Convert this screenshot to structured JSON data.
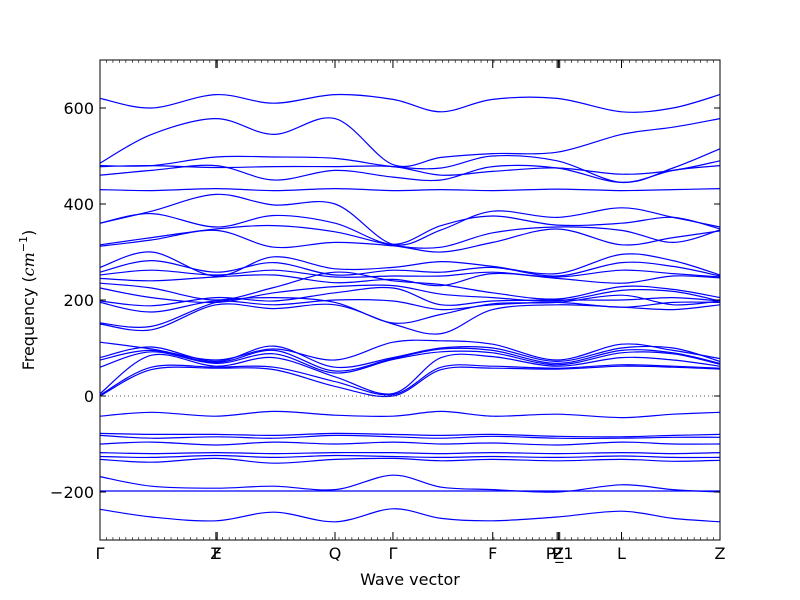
{
  "chart_data": {
    "type": "line",
    "title": "",
    "xlabel": "Wave vector",
    "ylabel": "Frequency ($cm^{-1}$)",
    "ylabel_parts": {
      "main": "Frequency (",
      "math": "cm",
      "sup": "−1",
      "close": ")"
    },
    "ylim": [
      -300,
      700
    ],
    "xlim": [
      0,
      9.63
    ],
    "grid": false,
    "yticks": [
      {
        "value": -200,
        "label": "−200"
      },
      {
        "value": 0,
        "label": "0"
      },
      {
        "value": 200,
        "label": "200"
      },
      {
        "value": 400,
        "label": "400"
      },
      {
        "value": 600,
        "label": "600"
      }
    ],
    "xticks": [
      {
        "value": 0,
        "label": "Γ"
      },
      {
        "value": 1.8,
        "label": "Z"
      },
      {
        "value": 1.82,
        "label": "F"
      },
      {
        "value": 3.65,
        "label": "Q"
      },
      {
        "value": 4.55,
        "label": "Γ"
      },
      {
        "value": 6.1,
        "label": "F"
      },
      {
        "value": 7.1,
        "label": "P"
      },
      {
        "value": 7.12,
        "label": "Z"
      },
      {
        "value": 7.14,
        "label": "P_1"
      },
      {
        "value": 8.1,
        "label": "L"
      },
      {
        "value": 9.63,
        "label": "Z"
      }
    ],
    "zero_line": true,
    "series_color": "#0000ff",
    "x": [
      0,
      0.8,
      1.8,
      2.7,
      3.65,
      4.55,
      5.3,
      6.1,
      7.1,
      8.1,
      8.9,
      9.63
    ],
    "series": [
      {
        "values": [
          620,
          600,
          628,
          610,
          628,
          618,
          592,
          618,
          620,
          592,
          600,
          628
        ]
      },
      {
        "values": [
          485,
          545,
          578,
          545,
          578,
          482,
          497,
          505,
          508,
          545,
          560,
          578
        ]
      },
      {
        "values": [
          480,
          480,
          498,
          498,
          495,
          478,
          475,
          500,
          490,
          445,
          475,
          515
        ]
      },
      {
        "values": [
          478,
          480,
          476,
          478,
          478,
          478,
          460,
          468,
          475,
          462,
          470,
          490
        ]
      },
      {
        "values": [
          460,
          470,
          480,
          450,
          470,
          456,
          450,
          478,
          475,
          445,
          470,
          480
        ]
      },
      {
        "values": [
          430,
          428,
          432,
          428,
          432,
          428,
          430,
          428,
          431,
          428,
          430,
          432
        ]
      },
      {
        "values": [
          360,
          385,
          420,
          398,
          400,
          316,
          346,
          385,
          372,
          392,
          372,
          352
        ]
      },
      {
        "values": [
          360,
          380,
          352,
          376,
          360,
          316,
          355,
          375,
          356,
          360,
          372,
          348
        ]
      },
      {
        "values": [
          315,
          330,
          348,
          355,
          342,
          314,
          310,
          340,
          352,
          345,
          320,
          346
        ]
      },
      {
        "values": [
          312,
          325,
          345,
          310,
          320,
          313,
          300,
          320,
          348,
          315,
          330,
          344
        ]
      },
      {
        "values": [
          268,
          300,
          250,
          290,
          265,
          268,
          280,
          270,
          255,
          295,
          282,
          252
        ]
      },
      {
        "values": [
          258,
          282,
          258,
          278,
          252,
          262,
          258,
          268,
          250,
          278,
          270,
          250
        ]
      },
      {
        "values": [
          252,
          262,
          252,
          262,
          248,
          250,
          250,
          258,
          248,
          262,
          255,
          248
        ]
      },
      {
        "values": [
          245,
          240,
          248,
          252,
          236,
          243,
          230,
          255,
          245,
          235,
          250,
          246
        ]
      },
      {
        "values": [
          235,
          225,
          200,
          226,
          258,
          240,
          232,
          215,
          202,
          228,
          222,
          205
        ]
      },
      {
        "values": [
          225,
          205,
          195,
          215,
          228,
          230,
          212,
          205,
          198,
          220,
          218,
          198
        ]
      },
      {
        "values": [
          198,
          188,
          205,
          198,
          215,
          225,
          190,
          198,
          200,
          200,
          205,
          198
        ]
      },
      {
        "values": [
          195,
          175,
          198,
          190,
          200,
          198,
          180,
          190,
          195,
          185,
          195,
          195
        ]
      },
      {
        "values": [
          152,
          145,
          195,
          205,
          195,
          152,
          170,
          192,
          195,
          210,
          190,
          198
        ]
      },
      {
        "values": [
          150,
          138,
          190,
          182,
          190,
          150,
          130,
          180,
          190,
          185,
          180,
          190
        ]
      },
      {
        "values": [
          112,
          98,
          75,
          98,
          75,
          112,
          115,
          108,
          75,
          108,
          95,
          78
        ]
      },
      {
        "values": [
          80,
          102,
          72,
          104,
          60,
          80,
          100,
          100,
          72,
          100,
          100,
          72
        ]
      },
      {
        "values": [
          75,
          95,
          70,
          95,
          52,
          78,
          98,
          95,
          68,
          95,
          90,
          68
        ]
      },
      {
        "values": [
          60,
          92,
          68,
          88,
          48,
          76,
          92,
          90,
          65,
          90,
          88,
          66
        ]
      },
      {
        "values": [
          5,
          85,
          62,
          80,
          40,
          5,
          80,
          82,
          62,
          80,
          75,
          62
        ]
      },
      {
        "values": [
          2,
          60,
          60,
          60,
          30,
          3,
          60,
          62,
          58,
          65,
          62,
          58
        ]
      },
      {
        "values": [
          0,
          55,
          58,
          55,
          20,
          0,
          55,
          58,
          56,
          62,
          60,
          56
        ]
      },
      {
        "values": [
          -42,
          -34,
          -42,
          -32,
          -40,
          -42,
          -32,
          -42,
          -38,
          -45,
          -38,
          -34
        ]
      },
      {
        "values": [
          -78,
          -80,
          -80,
          -82,
          -78,
          -80,
          -82,
          -80,
          -84,
          -85,
          -82,
          -80
        ]
      },
      {
        "values": [
          -82,
          -88,
          -85,
          -88,
          -82,
          -85,
          -88,
          -84,
          -88,
          -88,
          -86,
          -86
        ]
      },
      {
        "values": [
          -100,
          -96,
          -102,
          -96,
          -100,
          -96,
          -100,
          -98,
          -102,
          -96,
          -100,
          -100
        ]
      },
      {
        "values": [
          -118,
          -120,
          -118,
          -120,
          -118,
          -118,
          -120,
          -118,
          -120,
          -118,
          -120,
          -118
        ]
      },
      {
        "values": [
          -126,
          -128,
          -124,
          -128,
          -124,
          -126,
          -128,
          -126,
          -128,
          -125,
          -128,
          -128
        ]
      },
      {
        "values": [
          -132,
          -138,
          -130,
          -140,
          -132,
          -130,
          -135,
          -132,
          -135,
          -132,
          -136,
          -134
        ]
      },
      {
        "values": [
          -168,
          -188,
          -192,
          -188,
          -195,
          -165,
          -190,
          -195,
          -200,
          -185,
          -195,
          -200
        ]
      },
      {
        "values": [
          -198,
          -198,
          -198,
          -198,
          -198,
          -198,
          -198,
          -198,
          -198,
          -198,
          -198,
          -198
        ]
      },
      {
        "values": [
          -236,
          -252,
          -260,
          -242,
          -262,
          -235,
          -255,
          -260,
          -252,
          -240,
          -255,
          -262
        ]
      }
    ]
  }
}
